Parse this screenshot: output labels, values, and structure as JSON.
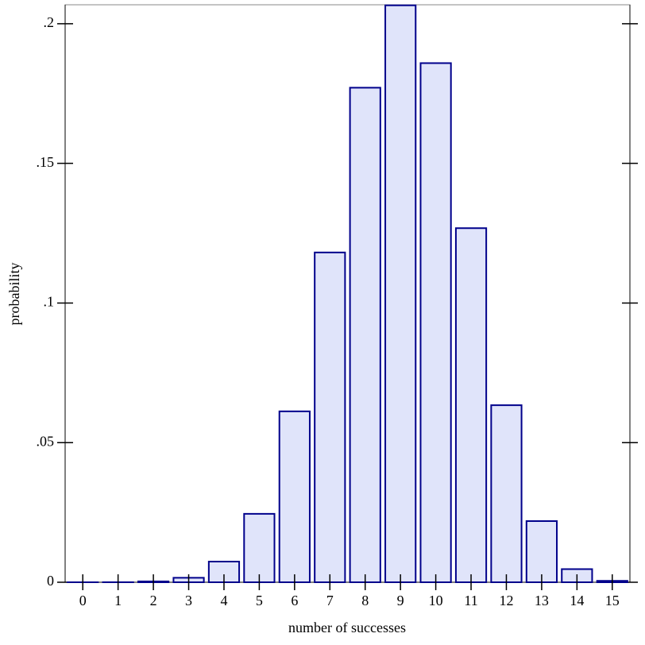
{
  "chart_data": {
    "type": "bar",
    "x_label": "number of successes",
    "y_label": "probability",
    "categories": [
      "0",
      "1",
      "2",
      "3",
      "4",
      "5",
      "6",
      "7",
      "8",
      "9",
      "10",
      "11",
      "12",
      "13",
      "14",
      "15"
    ],
    "values": [
      1e-06,
      2e-05,
      0.0003,
      0.0016,
      0.0074,
      0.0245,
      0.0612,
      0.1181,
      0.1771,
      0.2066,
      0.1859,
      0.1268,
      0.0634,
      0.0219,
      0.0047,
      0.0005
    ],
    "color": "#e0e4fa",
    "edge_color": "#00008b",
    "ylim": [
      0,
      0.2068
    ],
    "yticks": [
      0,
      {
        "value": 0.05,
        "label": ".05"
      },
      {
        "value": 0.1,
        "label": ".1"
      },
      {
        "value": 0.15,
        "label": ".15"
      },
      {
        "value": 0.2,
        "label": ".2"
      }
    ]
  }
}
